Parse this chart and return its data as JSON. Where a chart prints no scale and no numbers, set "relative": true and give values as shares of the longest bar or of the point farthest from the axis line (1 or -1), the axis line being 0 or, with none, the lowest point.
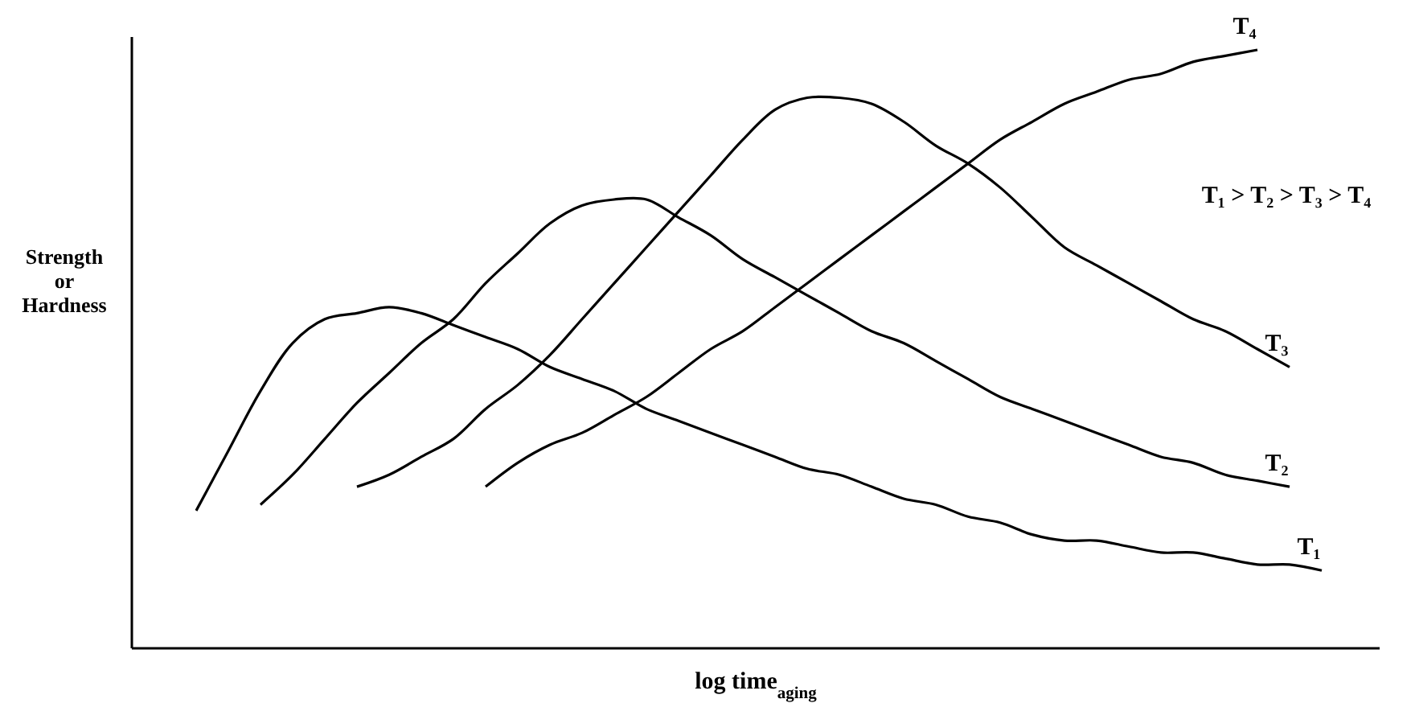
{
  "chart_data": {
    "type": "line",
    "relative": true,
    "xlabel": "log time$_{aging}$",
    "ylabel": "Strength or Hardness",
    "legend": false,
    "grid": false,
    "marker": "none",
    "line_style": "solid",
    "annotations": [
      "T₁ > T₂ > T₃ > T₄"
    ],
    "categories": [
      null,
      null,
      null,
      null,
      null,
      null,
      null,
      null,
      null,
      null,
      null,
      null,
      null,
      null,
      null,
      null,
      null,
      null,
      null,
      null,
      null,
      null,
      null,
      null,
      null,
      null,
      null,
      null,
      null,
      null,
      null,
      null,
      null,
      null,
      null,
      null
    ],
    "series": [
      {
        "name": "T₁",
        "color": "#000000",
        "values": [
          0.23,
          0.33,
          0.43,
          0.51,
          0.55,
          0.56,
          0.57,
          0.56,
          0.54,
          0.52,
          0.5,
          0.47,
          0.45,
          0.43,
          0.4,
          0.38,
          0.36,
          0.34,
          0.32,
          0.3,
          0.29,
          0.27,
          0.25,
          0.24,
          0.22,
          0.21,
          0.19,
          0.18,
          0.18,
          0.17,
          0.16,
          0.16,
          0.15,
          0.14,
          0.14,
          0.13
        ]
      },
      {
        "name": "T₂",
        "color": "#000000",
        "values": [
          null,
          null,
          0.24,
          0.29,
          0.35,
          0.41,
          0.46,
          0.51,
          0.55,
          0.61,
          0.66,
          0.71,
          0.74,
          0.75,
          0.75,
          0.72,
          0.69,
          0.65,
          0.62,
          0.59,
          0.56,
          0.53,
          0.51,
          0.48,
          0.45,
          0.42,
          0.4,
          0.38,
          0.36,
          0.34,
          0.32,
          0.31,
          0.29,
          0.28,
          0.27,
          null
        ]
      },
      {
        "name": "T₃",
        "color": "#000000",
        "values": [
          null,
          null,
          null,
          null,
          null,
          0.27,
          0.29,
          0.32,
          0.35,
          0.4,
          0.44,
          0.49,
          0.55,
          0.61,
          0.67,
          0.73,
          0.79,
          0.85,
          0.9,
          0.92,
          0.92,
          0.91,
          0.88,
          0.84,
          0.81,
          0.77,
          0.72,
          0.67,
          0.64,
          0.61,
          0.58,
          0.55,
          0.53,
          0.5,
          0.47,
          null
        ]
      },
      {
        "name": "T₄",
        "color": "#000000",
        "values": [
          null,
          null,
          null,
          null,
          null,
          null,
          null,
          null,
          null,
          0.27,
          0.31,
          0.34,
          0.36,
          0.39,
          0.42,
          0.46,
          0.5,
          0.53,
          0.57,
          0.61,
          0.65,
          0.69,
          0.73,
          0.77,
          0.81,
          0.85,
          0.88,
          0.91,
          0.93,
          0.95,
          0.96,
          0.98,
          0.99,
          1,
          null,
          null
        ]
      }
    ]
  }
}
